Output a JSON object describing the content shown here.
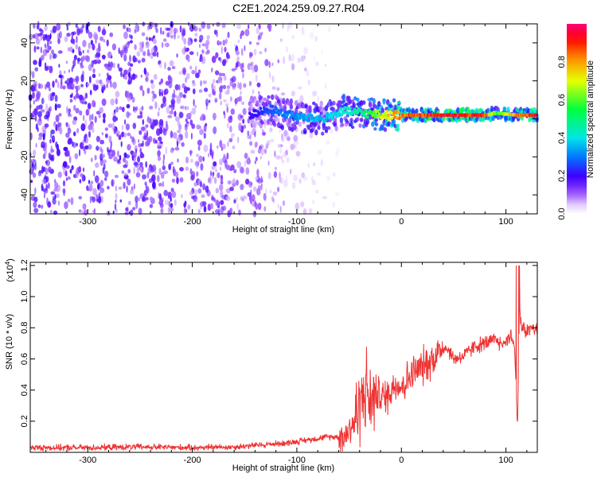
{
  "page": {
    "title": "C2E1.2024.259.09.27.R04"
  },
  "chart_data": [
    {
      "type": "heatmap",
      "title": "C2E1.2024.259.09.27.R04",
      "xlabel": "Height of straight line (km)",
      "ylabel": "Frequency (Hz)",
      "xlim": [
        -355,
        130
      ],
      "ylim": [
        -50,
        50
      ],
      "x_ticks": [
        -300,
        -200,
        -100,
        0,
        100
      ],
      "y_ticks": [
        -40,
        -20,
        0,
        20,
        40
      ],
      "colorbar": {
        "label": "Normalized spectral amplitude",
        "range": [
          0.0,
          1.0
        ],
        "ticks": [
          0.0,
          0.2,
          0.4,
          0.6,
          0.8
        ],
        "colormap": [
          "#ffffff",
          "#d9b3ff",
          "#7a00ff",
          "#0000ff",
          "#00ffff",
          "#00ff00",
          "#ffff00",
          "#ff8000",
          "#ff0000",
          "#ff0066"
        ]
      },
      "description_points": [
        {
          "x": -340,
          "noise_amplitude": 0.12
        },
        {
          "x": -200,
          "noise_amplitude": 0.1
        },
        {
          "x": -140,
          "noise_amplitude": 0.08
        },
        {
          "x": -100,
          "noise_amplitude": 0.04
        },
        {
          "x": -60,
          "noise_amplitude": 0.01
        }
      ],
      "signal_band": [
        {
          "x": -145,
          "freq": 2,
          "amplitude": 0.2
        },
        {
          "x": -125,
          "freq": 5,
          "amplitude": 0.3
        },
        {
          "x": -100,
          "freq": 1,
          "amplitude": 0.35
        },
        {
          "x": -75,
          "freq": 0,
          "amplitude": 0.4
        },
        {
          "x": -55,
          "freq": 4,
          "amplitude": 0.45
        },
        {
          "x": -35,
          "freq": 3,
          "amplitude": 0.55
        },
        {
          "x": -20,
          "freq": 2,
          "amplitude": 0.7
        },
        {
          "x": 0,
          "freq": 2,
          "amplitude": 0.9
        },
        {
          "x": 40,
          "freq": 2,
          "amplitude": 1.0
        },
        {
          "x": 80,
          "freq": 2,
          "amplitude": 0.95
        },
        {
          "x": 92,
          "freq": 3,
          "amplitude": 0.6
        },
        {
          "x": 110,
          "freq": 2,
          "amplitude": 0.9
        },
        {
          "x": 130,
          "freq": 2,
          "amplitude": 1.0
        }
      ]
    },
    {
      "type": "line",
      "xlabel": "Height of straight line (km)",
      "ylabel": "SNR (10 * v/v)",
      "y_multiplier_label": "(x10",
      "y_multiplier_exp": "4",
      "xlim": [
        -355,
        130
      ],
      "ylim": [
        0.0,
        1.22
      ],
      "x_ticks": [
        -300,
        -200,
        -100,
        0,
        100
      ],
      "y_ticks": [
        0.2,
        0.4,
        0.6,
        0.8,
        1.0,
        1.2
      ],
      "series": [
        {
          "color": "#ee3333",
          "x": [
            -355,
            -300,
            -250,
            -200,
            -160,
            -130,
            -110,
            -90,
            -70,
            -55,
            -45,
            -38,
            -33,
            -30,
            -25,
            -15,
            -5,
            0,
            10,
            20,
            30,
            40,
            45,
            50,
            60,
            70,
            80,
            90,
            95,
            100,
            105,
            108,
            111,
            113,
            115,
            120,
            125,
            130
          ],
          "y": [
            0.03,
            0.03,
            0.035,
            0.03,
            0.035,
            0.05,
            0.06,
            0.08,
            0.1,
            0.1,
            0.2,
            0.35,
            0.42,
            0.3,
            0.38,
            0.35,
            0.45,
            0.42,
            0.5,
            0.55,
            0.6,
            0.68,
            0.66,
            0.6,
            0.62,
            0.68,
            0.7,
            0.72,
            0.7,
            0.72,
            0.75,
            0.7,
            0.15,
            0.9,
            0.8,
            0.78,
            0.8,
            0.78
          ]
        }
      ]
    }
  ]
}
